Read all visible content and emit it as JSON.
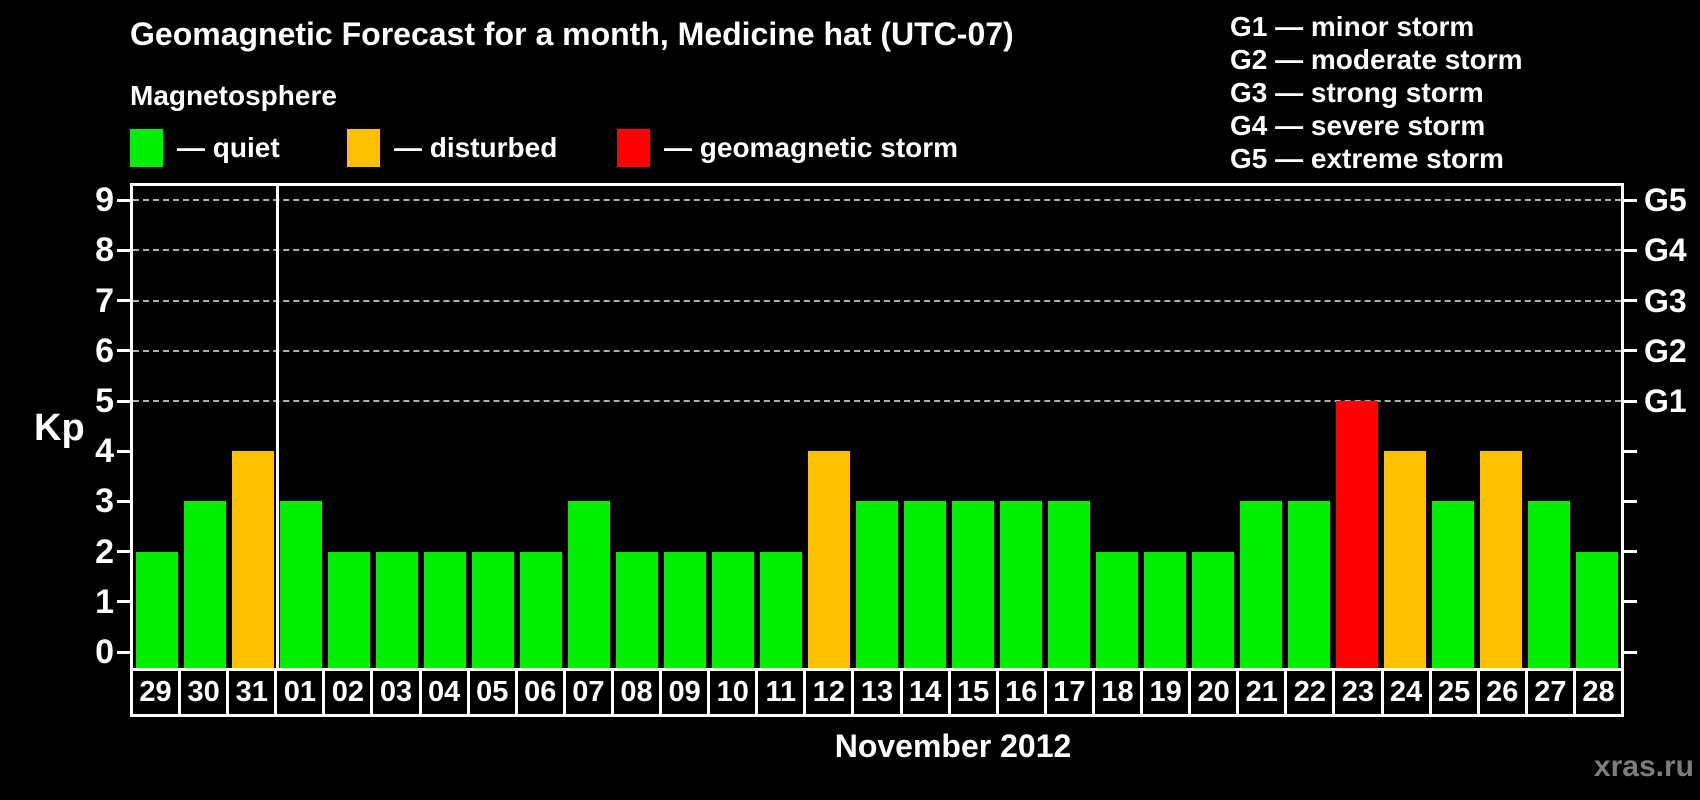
{
  "header": {
    "title": "Geomagnetic Forecast for a month, Medicine hat (UTC-07)",
    "subtitle": "Magnetosphere"
  },
  "legend": {
    "items": [
      {
        "name": "quiet",
        "color": "#00ee00",
        "label": "— quiet"
      },
      {
        "name": "disturbed",
        "color": "#ffc000",
        "label": "— disturbed"
      },
      {
        "name": "storm",
        "color": "#ff0000",
        "label": "— geomagnetic storm"
      }
    ]
  },
  "g_scale_legend": {
    "items": [
      "G1 — minor storm",
      "G2 — moderate storm",
      "G3 — strong storm",
      "G4 — severe storm",
      "G5 — extreme storm"
    ]
  },
  "chart_data": {
    "type": "bar",
    "title": "Geomagnetic Forecast for a month, Medicine hat (UTC-07)",
    "ylabel": "Kp",
    "xlabel": "November 2012",
    "ylim": [
      0,
      9
    ],
    "grid": "dashed horizontal at Kp 5-9",
    "legend_position": "top",
    "categories": [
      "29",
      "30",
      "31",
      "01",
      "02",
      "03",
      "04",
      "05",
      "06",
      "07",
      "08",
      "09",
      "10",
      "11",
      "12",
      "13",
      "14",
      "15",
      "16",
      "17",
      "18",
      "19",
      "20",
      "21",
      "22",
      "23",
      "24",
      "25",
      "26",
      "27",
      "28"
    ],
    "values": [
      2,
      3,
      4,
      3,
      2,
      2,
      2,
      2,
      2,
      3,
      2,
      2,
      2,
      2,
      4,
      3,
      3,
      3,
      3,
      3,
      2,
      2,
      2,
      3,
      3,
      5,
      4,
      3,
      4,
      3,
      2
    ],
    "statuses": [
      "quiet",
      "quiet",
      "disturbed",
      "quiet",
      "quiet",
      "quiet",
      "quiet",
      "quiet",
      "quiet",
      "quiet",
      "quiet",
      "quiet",
      "quiet",
      "quiet",
      "disturbed",
      "quiet",
      "quiet",
      "quiet",
      "quiet",
      "quiet",
      "quiet",
      "quiet",
      "quiet",
      "quiet",
      "quiet",
      "storm",
      "disturbed",
      "quiet",
      "disturbed",
      "quiet",
      "quiet"
    ],
    "y_ticks": [
      "0",
      "1",
      "2",
      "3",
      "4",
      "5",
      "6",
      "7",
      "8",
      "9"
    ],
    "gridlines_at": [
      5,
      6,
      7,
      8,
      9
    ],
    "right_axis_labels": [
      {
        "kp": 9,
        "label": "G5"
      },
      {
        "kp": 8,
        "label": "G4"
      },
      {
        "kp": 7,
        "label": "G3"
      },
      {
        "kp": 6,
        "label": "G2"
      },
      {
        "kp": 5,
        "label": "G1"
      }
    ],
    "month_separator_after_index": 2,
    "colors": {
      "quiet": "#00ee00",
      "disturbed": "#ffc000",
      "storm": "#ff0000"
    }
  },
  "footer": {
    "watermark": "xras.ru"
  }
}
